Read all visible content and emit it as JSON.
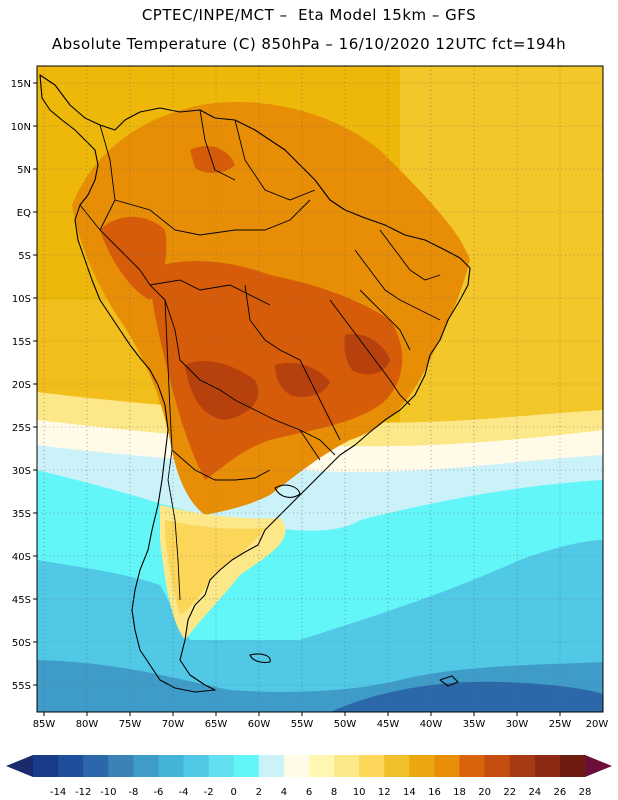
{
  "header": {
    "line1": "CPTEC/INPE/MCT –  Eta Model 15km – GFS",
    "line2": "Absolute Temperature (C) 850hPa – 16/10/2020 12UTC fct=194h"
  },
  "map": {
    "lat_labels": [
      "15N",
      "10N",
      "5N",
      "EQ",
      "5S",
      "10S",
      "15S",
      "20S",
      "25S",
      "30S",
      "35S",
      "40S",
      "45S",
      "50S",
      "55S"
    ],
    "lon_labels": [
      "85W",
      "80W",
      "75W",
      "70W",
      "65W",
      "60W",
      "55W",
      "50W",
      "45W",
      "40W",
      "35W",
      "30W",
      "25W",
      "20W"
    ],
    "ocean_color": "#edb80a",
    "land_hot_color": "#d65c0a",
    "land_hottest_color": "#b7410c"
  },
  "colorbar": {
    "ticks": [
      "-14",
      "-12",
      "-10",
      "-8",
      "-6",
      "-4",
      "-2",
      "0",
      "2",
      "4",
      "6",
      "8",
      "10",
      "12",
      "14",
      "16",
      "18",
      "20",
      "22",
      "24",
      "26",
      "28"
    ],
    "colors": [
      "#1a3a8a",
      "#1f4e9a",
      "#2a68aa",
      "#3a82b8",
      "#3f9cc8",
      "#43b4d8",
      "#50c8e6",
      "#62dff0",
      "#62f6f9",
      "#ccf2f9",
      "#fffbe8",
      "#fff7b2",
      "#fde889",
      "#fbd658",
      "#f0c02c",
      "#eaa80e",
      "#e78e06",
      "#d8630c",
      "#c44d10",
      "#a83a12",
      "#8c2a16",
      "#6e1c12"
    ],
    "left_arrow_color": "#1a2a6c",
    "right_arrow_color": "#6b0e3a"
  }
}
